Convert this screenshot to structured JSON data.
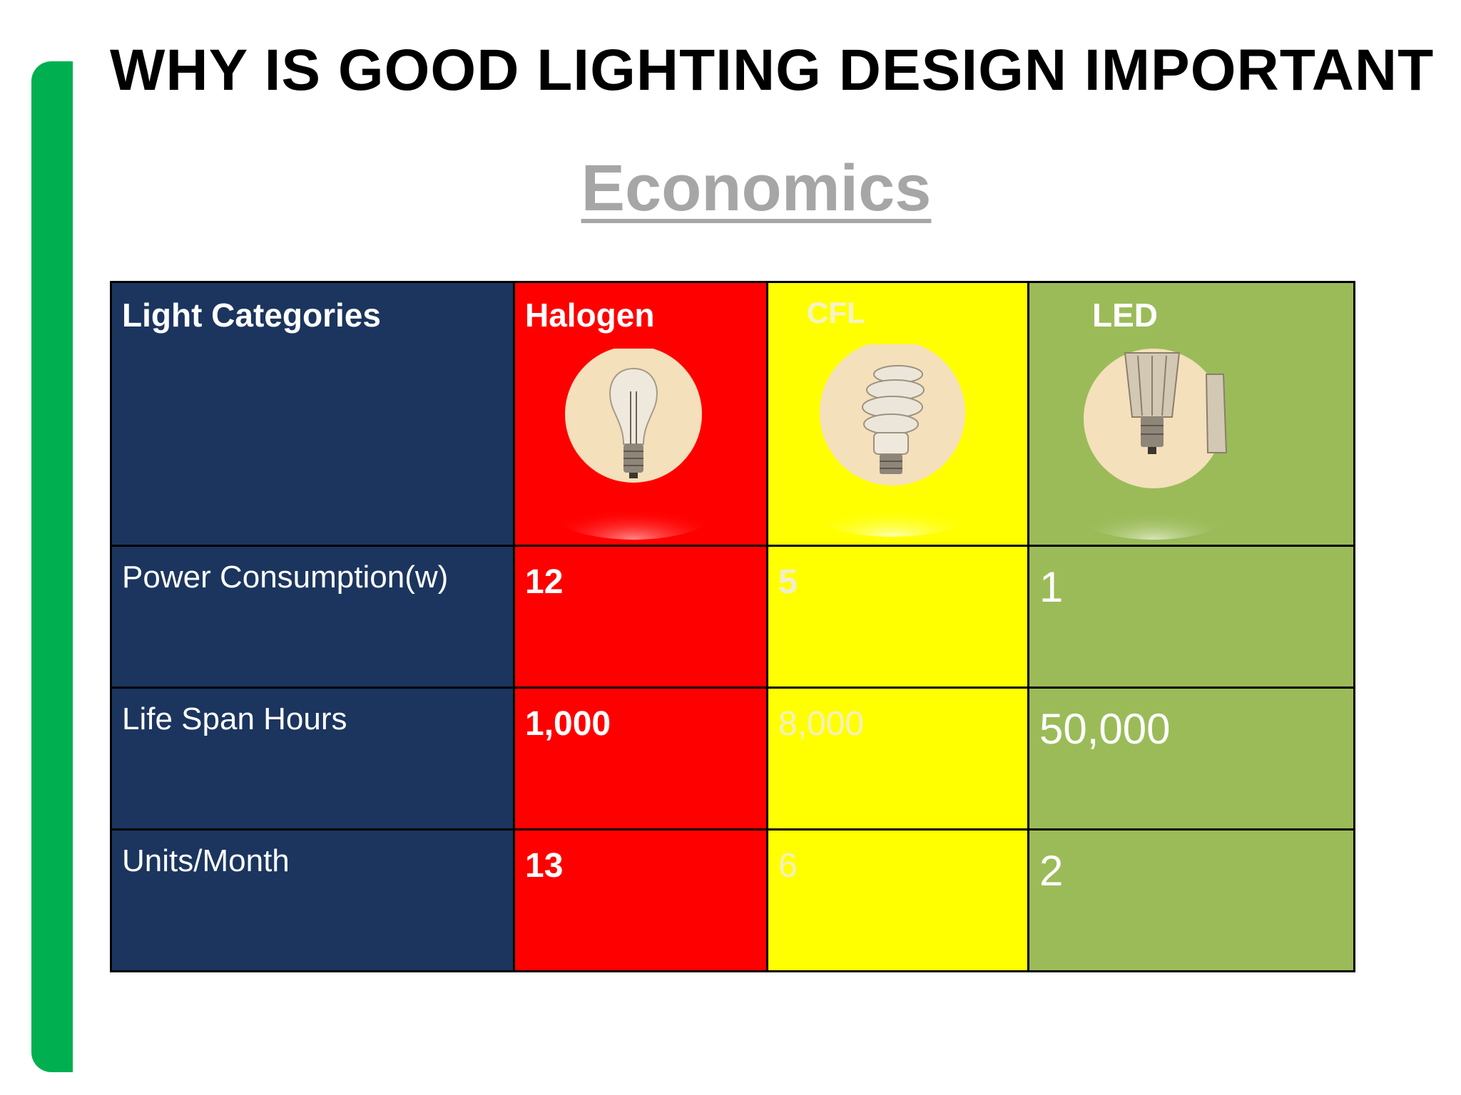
{
  "slide": {
    "title": "WHY IS GOOD LIGHTING DESIGN IMPORTANT",
    "subtitle": "Economics",
    "accent_color": "#00b050"
  },
  "table": {
    "header": {
      "category": "Light Categories",
      "halogen": "Halogen",
      "cfl": "CFL",
      "led": "LED"
    },
    "column_colors": {
      "category": "#1b355e",
      "halogen": "#ff0000",
      "cfl": "#ffff00",
      "led": "#9bbb59"
    },
    "icons": {
      "halogen": "incandescent-bulb-icon",
      "cfl": "cfl-spiral-bulb-icon",
      "led": "led-bulb-icon"
    },
    "rows": [
      {
        "label": "Power Consumption(w)",
        "halogen": "12",
        "cfl": "5",
        "led": "1"
      },
      {
        "label": "Life Span Hours",
        "halogen": "1,000",
        "cfl": "8,000",
        "led": "50,000"
      },
      {
        "label": "Units/Month",
        "halogen": "13",
        "cfl": "6",
        "led": "2"
      }
    ]
  }
}
